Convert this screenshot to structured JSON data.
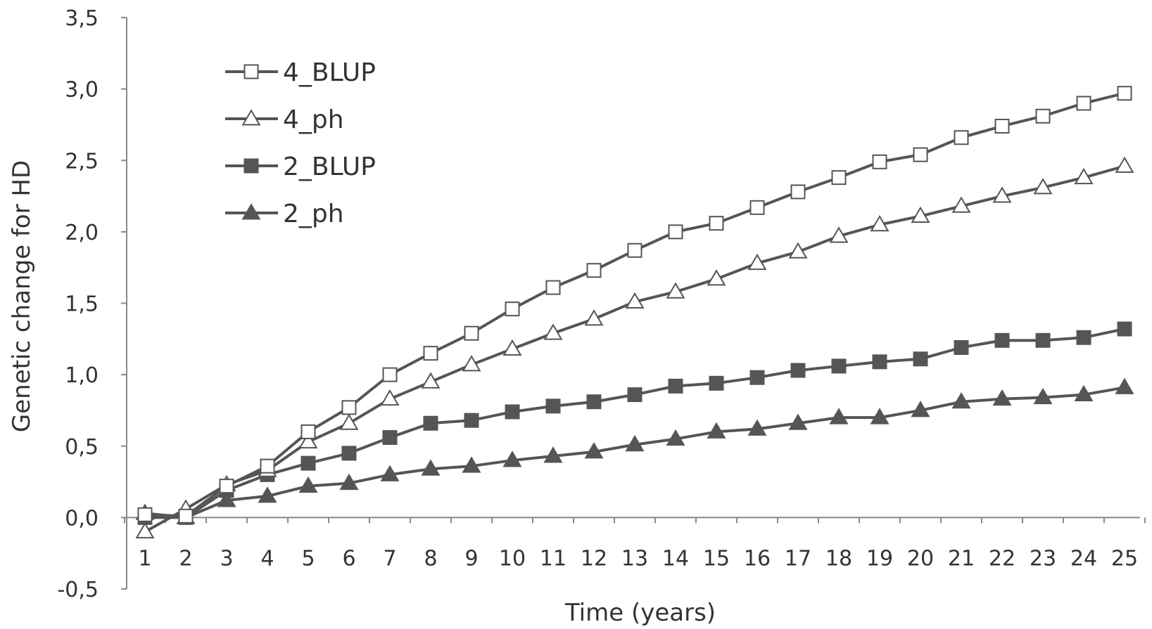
{
  "chart_data": {
    "type": "line",
    "title": "",
    "xlabel": "Time (years)",
    "ylabel": "Genetic change for HD",
    "x": [
      1,
      2,
      3,
      4,
      5,
      6,
      7,
      8,
      9,
      10,
      11,
      12,
      13,
      14,
      15,
      16,
      17,
      18,
      19,
      20,
      21,
      22,
      23,
      24,
      25
    ],
    "x_tick_labels": [
      "1",
      "2",
      "3",
      "4",
      "5",
      "6",
      "7",
      "8",
      "9",
      "10",
      "11",
      "12",
      "13",
      "14",
      "15",
      "16",
      "17",
      "18",
      "19",
      "20",
      "21",
      "22",
      "23",
      "24",
      "25"
    ],
    "ylim": [
      -0.5,
      3.5
    ],
    "y_ticks": [
      -0.5,
      0.0,
      0.5,
      1.0,
      1.5,
      2.0,
      2.5,
      3.0,
      3.5
    ],
    "y_tick_labels": [
      "-0,5",
      "0,0",
      "0,5",
      "1,0",
      "1,5",
      "2,0",
      "2,5",
      "3,0",
      "3,5"
    ],
    "grid": false,
    "legend_position": "top-left",
    "line_color": "#555555",
    "series": [
      {
        "name": "4_BLUP",
        "marker": "square-open",
        "values": [
          0.02,
          0.01,
          0.22,
          0.36,
          0.6,
          0.77,
          1.0,
          1.15,
          1.29,
          1.46,
          1.61,
          1.73,
          1.87,
          2.0,
          2.06,
          2.17,
          2.28,
          2.38,
          2.49,
          2.54,
          2.66,
          2.74,
          2.81,
          2.9,
          2.97
        ]
      },
      {
        "name": "4_ph",
        "marker": "triangle-open",
        "values": [
          -0.1,
          0.06,
          0.23,
          0.33,
          0.53,
          0.66,
          0.83,
          0.95,
          1.07,
          1.18,
          1.29,
          1.39,
          1.51,
          1.58,
          1.67,
          1.78,
          1.86,
          1.97,
          2.05,
          2.11,
          2.18,
          2.25,
          2.31,
          2.38,
          2.46
        ]
      },
      {
        "name": "2_BLUP",
        "marker": "square-filled",
        "values": [
          0.0,
          0.0,
          0.19,
          0.3,
          0.38,
          0.45,
          0.56,
          0.66,
          0.68,
          0.74,
          0.78,
          0.81,
          0.86,
          0.92,
          0.94,
          0.98,
          1.03,
          1.06,
          1.09,
          1.11,
          1.19,
          1.24,
          1.24,
          1.26,
          1.32
        ]
      },
      {
        "name": "2_ph",
        "marker": "triangle-filled",
        "values": [
          0.03,
          0.0,
          0.12,
          0.15,
          0.22,
          0.24,
          0.3,
          0.34,
          0.36,
          0.4,
          0.43,
          0.46,
          0.51,
          0.55,
          0.6,
          0.62,
          0.66,
          0.7,
          0.7,
          0.75,
          0.81,
          0.83,
          0.84,
          0.86,
          0.91
        ]
      }
    ]
  }
}
